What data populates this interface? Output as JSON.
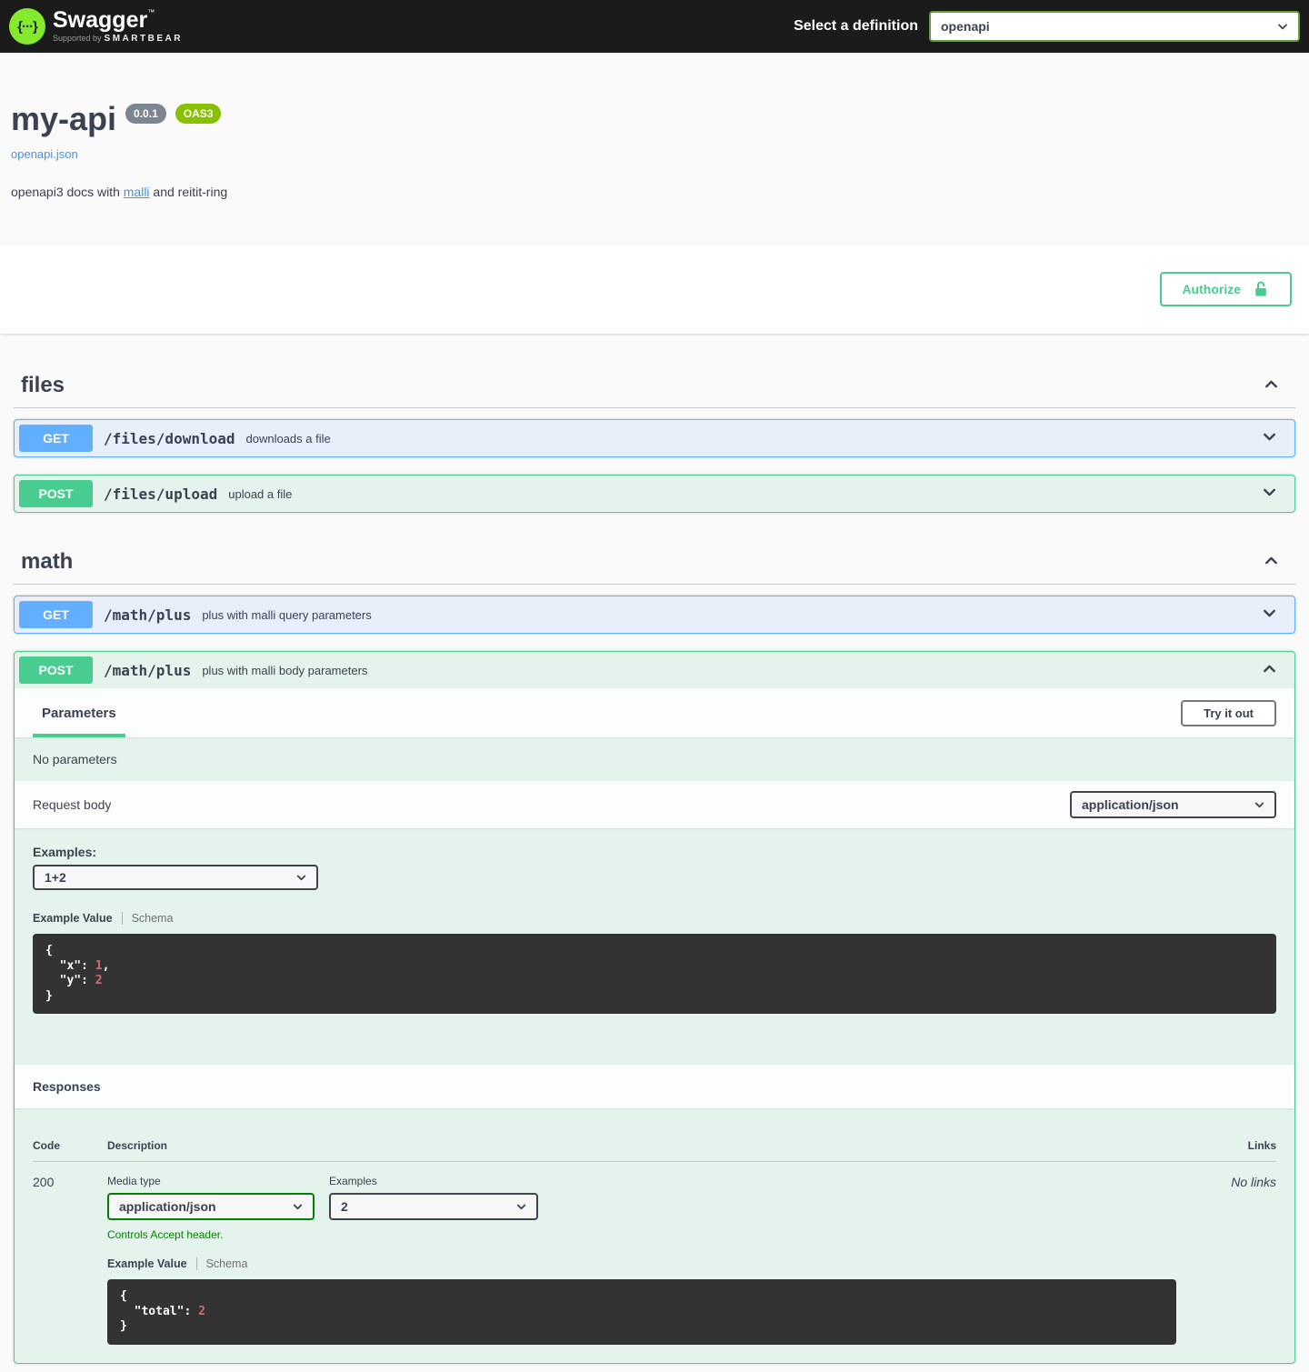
{
  "topbar": {
    "logo_text": "Swagger",
    "logo_tm": "™",
    "supported_by": "Supported by",
    "brand": "SMARTBEAR",
    "definition_label": "Select a definition",
    "definition_value": "openapi"
  },
  "info": {
    "title": "my-api",
    "version": "0.0.1",
    "spec": "OAS3",
    "spec_link": "openapi.json",
    "description_prefix": "openapi3 docs with ",
    "description_link": "malli",
    "description_suffix": " and reitit-ring"
  },
  "auth": {
    "authorize_label": "Authorize"
  },
  "sections": {
    "files": {
      "title": "files",
      "ops": [
        {
          "method": "GET",
          "path": "/files/download",
          "summary": "downloads a file"
        },
        {
          "method": "POST",
          "path": "/files/upload",
          "summary": "upload a file"
        }
      ]
    },
    "math": {
      "title": "math",
      "ops": [
        {
          "method": "GET",
          "path": "/math/plus",
          "summary": "plus with malli query parameters"
        },
        {
          "method": "POST",
          "path": "/math/plus",
          "summary": "plus with malli body parameters"
        }
      ]
    }
  },
  "op_detail": {
    "parameters_tab": "Parameters",
    "try_it_out": "Try it out",
    "no_parameters": "No parameters",
    "request_body": {
      "label": "Request body",
      "content_type": "application/json",
      "examples_label": "Examples:",
      "example_name": "1+2",
      "example_value_tab": "Example Value",
      "schema_tab": "Schema"
    },
    "responses": {
      "label": "Responses",
      "code_header": "Code",
      "description_header": "Description",
      "links_header": "Links",
      "status_code": "200",
      "links_value": "No links",
      "media_type_label": "Media type",
      "media_type": "application/json",
      "examples_label": "Examples",
      "example_name": "2",
      "accept_message": "Controls Accept header.",
      "example_value_tab": "Example Value",
      "schema_tab": "Schema"
    }
  },
  "code_blocks": {
    "request_example": [
      [
        {
          "text": "{",
          "type": "plain"
        }
      ],
      [
        {
          "text": "  \"x\": ",
          "type": "plain"
        },
        {
          "text": "1",
          "type": "number"
        },
        {
          "text": ",",
          "type": "plain"
        }
      ],
      [
        {
          "text": "  \"y\": ",
          "type": "plain"
        },
        {
          "text": "2",
          "type": "number"
        }
      ],
      [
        {
          "text": "}",
          "type": "plain"
        }
      ]
    ],
    "response_example": [
      [
        {
          "text": "{",
          "type": "plain"
        }
      ],
      [
        {
          "text": "  \"total\": ",
          "type": "plain"
        },
        {
          "text": "2",
          "type": "number"
        }
      ],
      [
        {
          "text": "}",
          "type": "plain"
        }
      ]
    ]
  },
  "colors": {
    "get_blue": "#61affe",
    "post_green": "#49cc90",
    "oas_badge": "#89bf04",
    "version_badge": "#7d8492",
    "topbar_bg": "#1b1b1b",
    "code_bg": "#333333",
    "code_number": "#d36a6a",
    "accept_green": "#008000",
    "link_blue": "#4990e2"
  }
}
